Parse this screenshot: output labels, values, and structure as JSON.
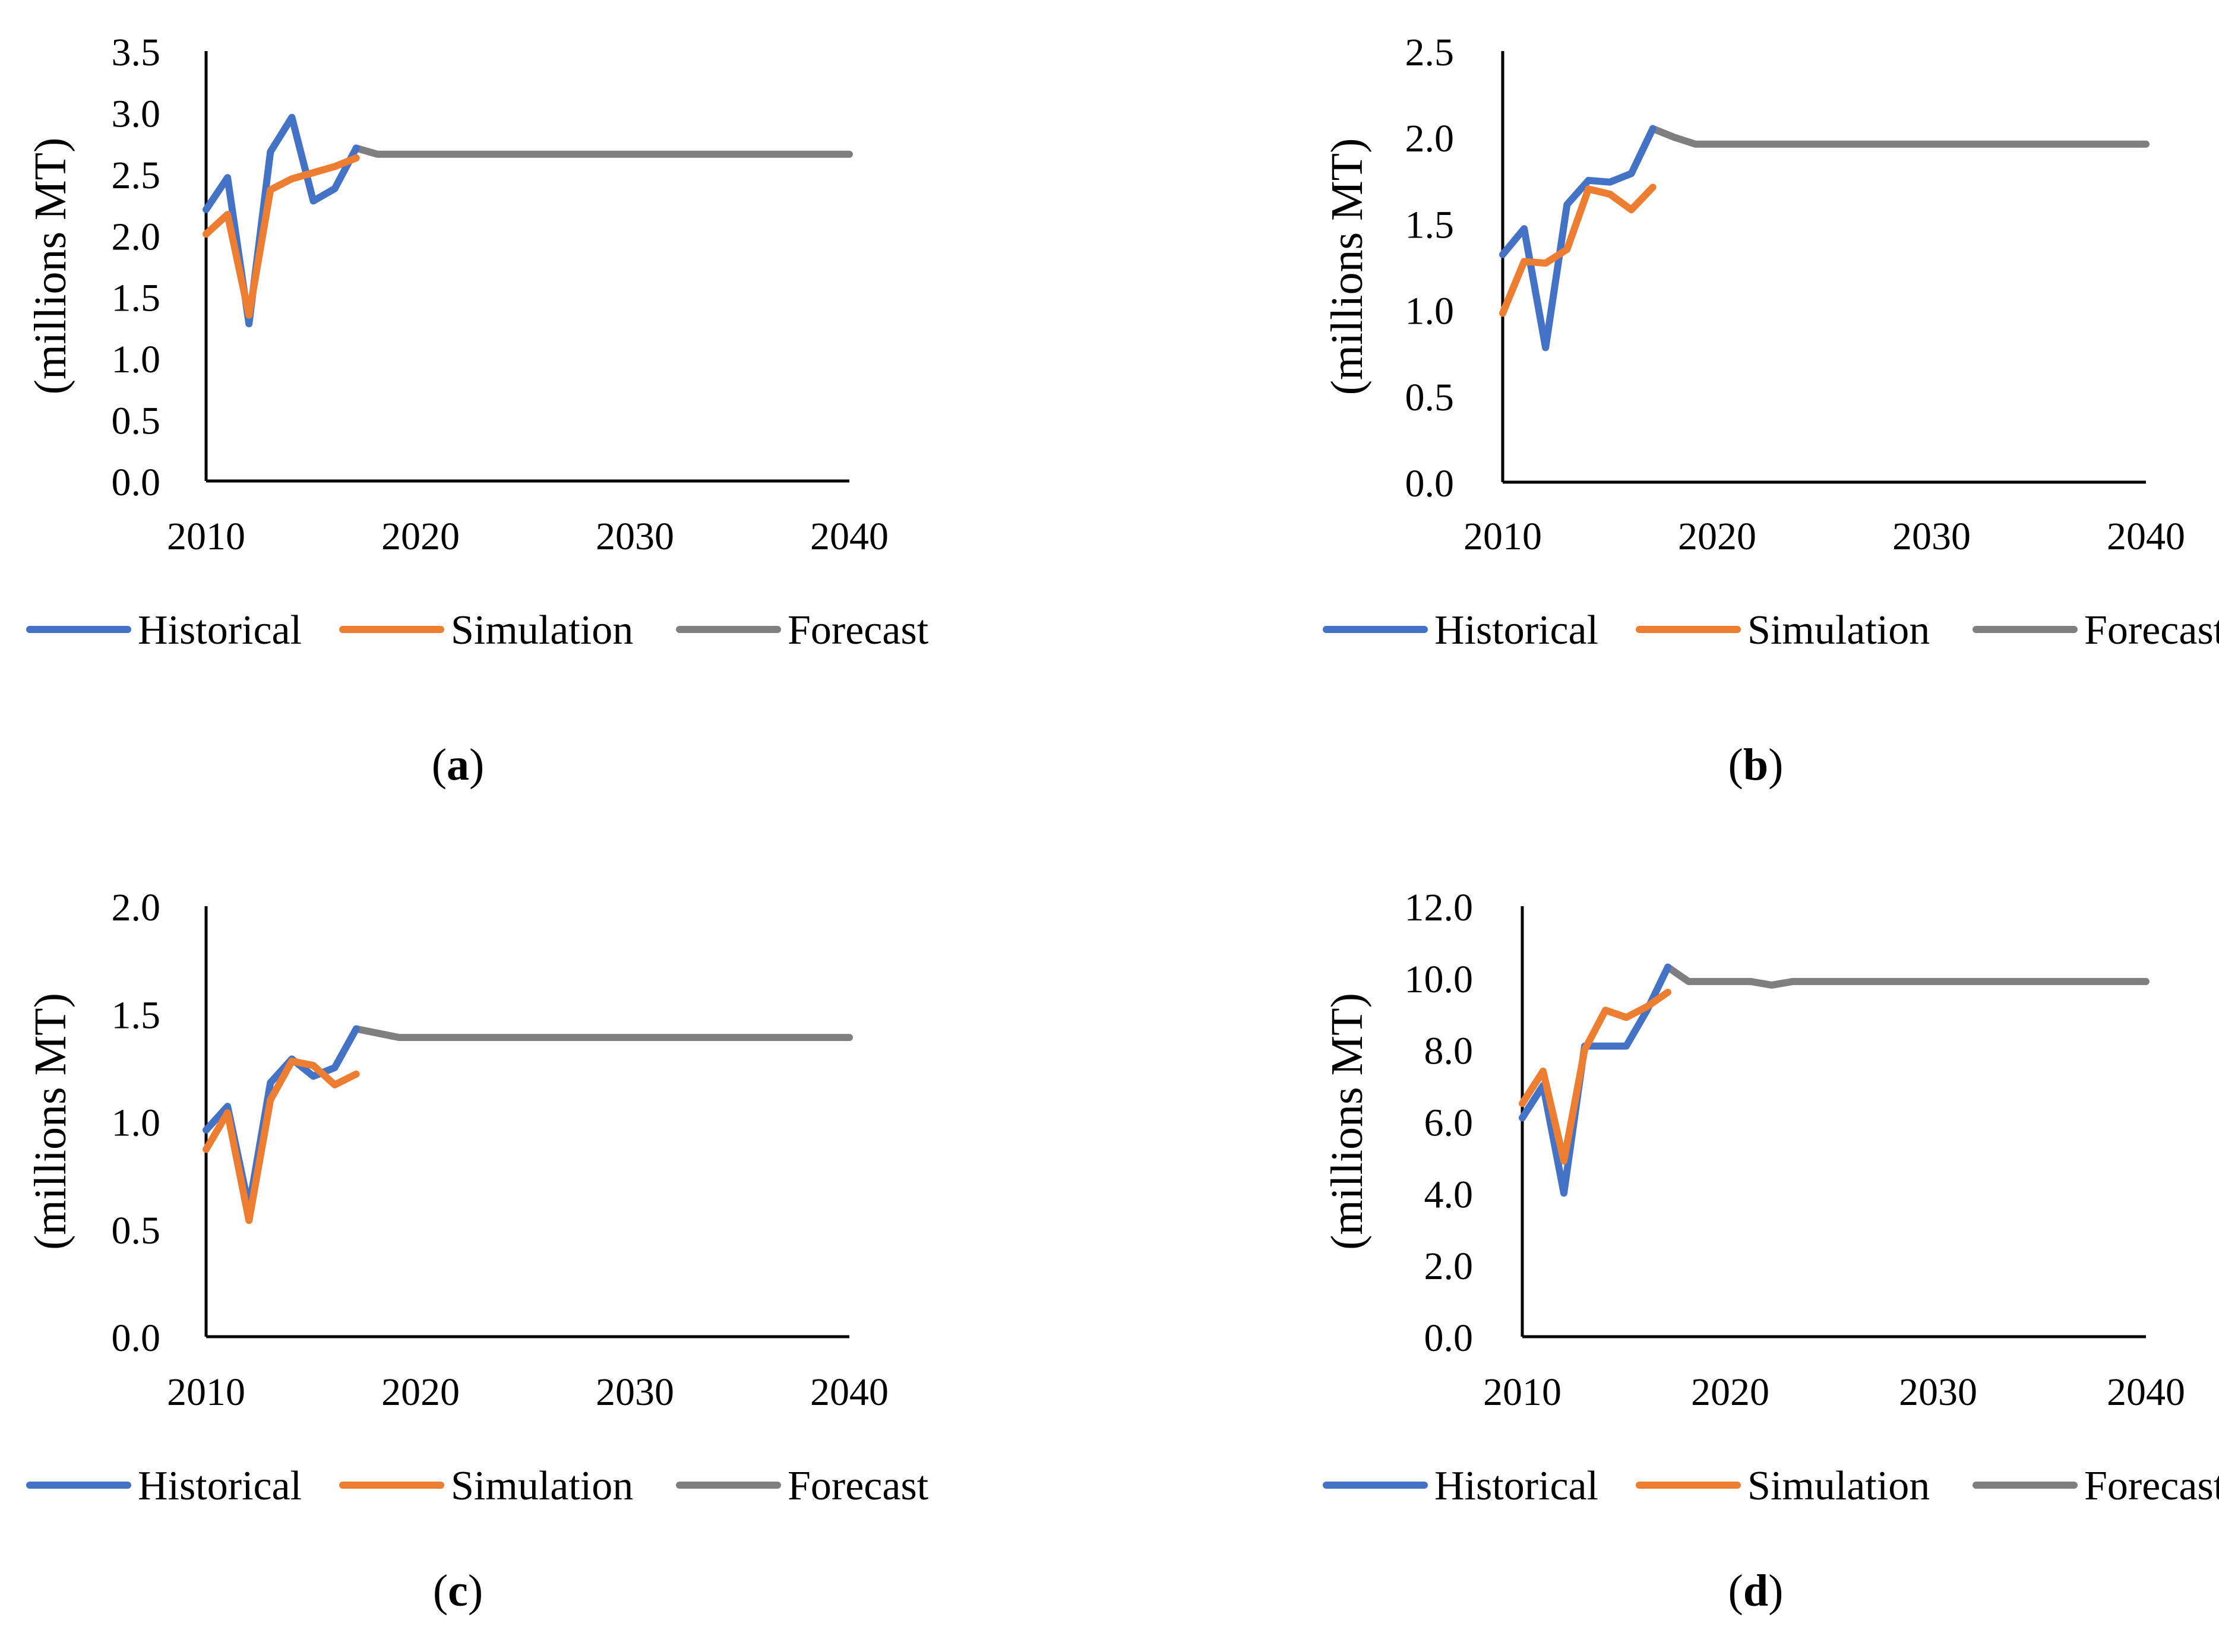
{
  "colors": {
    "historical": "#4472C4",
    "simulation": "#ED7D31",
    "forecast": "#7F7F7F",
    "axis": "#000000"
  },
  "chart_data": [
    {
      "type": "line",
      "panel": "a",
      "ylabel": "(millions MT)",
      "ylim": [
        0,
        3.5
      ],
      "yticks": [
        "0.0",
        "0.5",
        "1.0",
        "1.5",
        "2.0",
        "2.5",
        "3.0",
        "3.5"
      ],
      "xlim": [
        2010,
        2040
      ],
      "xticks": [
        "2010",
        "2020",
        "2030",
        "2040"
      ],
      "legend": [
        "Historical",
        "Simulation",
        "Forecast"
      ],
      "series": [
        {
          "name": "Forecast",
          "color_key": "forecast",
          "x": [
            2017,
            2018,
            2019,
            2020,
            2025,
            2030,
            2035,
            2040
          ],
          "y": [
            2.71,
            2.66,
            2.66,
            2.66,
            2.66,
            2.66,
            2.66,
            2.66
          ]
        },
        {
          "name": "Historical",
          "color_key": "historical",
          "x": [
            2010,
            2011,
            2012,
            2013,
            2014,
            2015,
            2016,
            2017
          ],
          "y": [
            2.21,
            2.47,
            1.28,
            2.68,
            2.96,
            2.28,
            2.38,
            2.71
          ]
        },
        {
          "name": "Simulation",
          "color_key": "simulation",
          "x": [
            2010,
            2011,
            2012,
            2013,
            2014,
            2015,
            2016,
            2017
          ],
          "y": [
            2.01,
            2.17,
            1.35,
            2.37,
            2.46,
            2.51,
            2.56,
            2.63
          ]
        }
      ]
    },
    {
      "type": "line",
      "panel": "b",
      "ylabel": "(millions MT)",
      "ylim": [
        0,
        2.5
      ],
      "yticks": [
        "0.0",
        "0.5",
        "1.0",
        "1.5",
        "2.0",
        "2.5"
      ],
      "xlim": [
        2010,
        2040
      ],
      "xticks": [
        "2010",
        "2020",
        "2030",
        "2040"
      ],
      "legend": [
        "Historical",
        "Simulation",
        "Forecast"
      ],
      "series": [
        {
          "name": "Forecast",
          "color_key": "forecast",
          "x": [
            2017,
            2018,
            2019,
            2020,
            2025,
            2030,
            2035,
            2040
          ],
          "y": [
            2.05,
            2.0,
            1.96,
            1.96,
            1.96,
            1.96,
            1.96,
            1.96
          ]
        },
        {
          "name": "Historical",
          "color_key": "historical",
          "x": [
            2010,
            2011,
            2012,
            2013,
            2014,
            2015,
            2016,
            2017
          ],
          "y": [
            1.32,
            1.47,
            0.78,
            1.61,
            1.75,
            1.74,
            1.79,
            2.05
          ]
        },
        {
          "name": "Simulation",
          "color_key": "simulation",
          "x": [
            2010,
            2011,
            2012,
            2013,
            2014,
            2015,
            2016,
            2017
          ],
          "y": [
            0.98,
            1.28,
            1.27,
            1.35,
            1.7,
            1.67,
            1.58,
            1.71
          ]
        }
      ]
    },
    {
      "type": "line",
      "panel": "c",
      "ylabel": "(millions MT)",
      "ylim": [
        0,
        2.0
      ],
      "yticks": [
        "0.0",
        "0.5",
        "1.0",
        "1.5",
        "2.0"
      ],
      "xlim": [
        2010,
        2040
      ],
      "xticks": [
        "2010",
        "2020",
        "2030",
        "2040"
      ],
      "legend": [
        "Historical",
        "Simulation",
        "Forecast"
      ],
      "series": [
        {
          "name": "Forecast",
          "color_key": "forecast",
          "x": [
            2017,
            2018,
            2019,
            2020,
            2025,
            2030,
            2035,
            2040
          ],
          "y": [
            1.43,
            1.41,
            1.39,
            1.39,
            1.39,
            1.39,
            1.39,
            1.39
          ]
        },
        {
          "name": "Historical",
          "color_key": "historical",
          "x": [
            2010,
            2011,
            2012,
            2013,
            2014,
            2015,
            2016,
            2017
          ],
          "y": [
            0.96,
            1.07,
            0.6,
            1.18,
            1.29,
            1.21,
            1.25,
            1.43
          ]
        },
        {
          "name": "Simulation",
          "color_key": "simulation",
          "x": [
            2010,
            2011,
            2012,
            2013,
            2014,
            2015,
            2016,
            2017
          ],
          "y": [
            0.87,
            1.04,
            0.54,
            1.1,
            1.28,
            1.26,
            1.17,
            1.22
          ]
        }
      ]
    },
    {
      "type": "line",
      "panel": "d",
      "ylabel": "(millions MT)",
      "ylim": [
        0,
        12.0
      ],
      "yticks": [
        "0.0",
        "2.0",
        "4.0",
        "6.0",
        "8.0",
        "10.0",
        "12.0"
      ],
      "xlim": [
        2010,
        2040
      ],
      "xticks": [
        "2010",
        "2020",
        "2030",
        "2040"
      ],
      "legend": [
        "Historical",
        "Simulation",
        "Forecast"
      ],
      "series": [
        {
          "name": "Forecast",
          "color_key": "forecast",
          "x": [
            2017,
            2018,
            2019,
            2020,
            2021,
            2022,
            2023,
            2025,
            2030,
            2035,
            2040
          ],
          "y": [
            10.3,
            9.9,
            9.9,
            9.9,
            9.9,
            9.8,
            9.9,
            9.9,
            9.9,
            9.9,
            9.9
          ]
        },
        {
          "name": "Historical",
          "color_key": "historical",
          "x": [
            2010,
            2011,
            2012,
            2013,
            2014,
            2015,
            2016,
            2017
          ],
          "y": [
            6.1,
            7.0,
            4.0,
            8.1,
            8.1,
            8.1,
            9.1,
            10.3
          ]
        },
        {
          "name": "Simulation",
          "color_key": "simulation",
          "x": [
            2010,
            2011,
            2012,
            2013,
            2014,
            2015,
            2016,
            2017
          ],
          "y": [
            6.5,
            7.4,
            4.9,
            8.0,
            9.1,
            8.9,
            9.2,
            9.6
          ]
        }
      ]
    }
  ],
  "panel_labels": [
    "a",
    "b",
    "c",
    "d"
  ]
}
